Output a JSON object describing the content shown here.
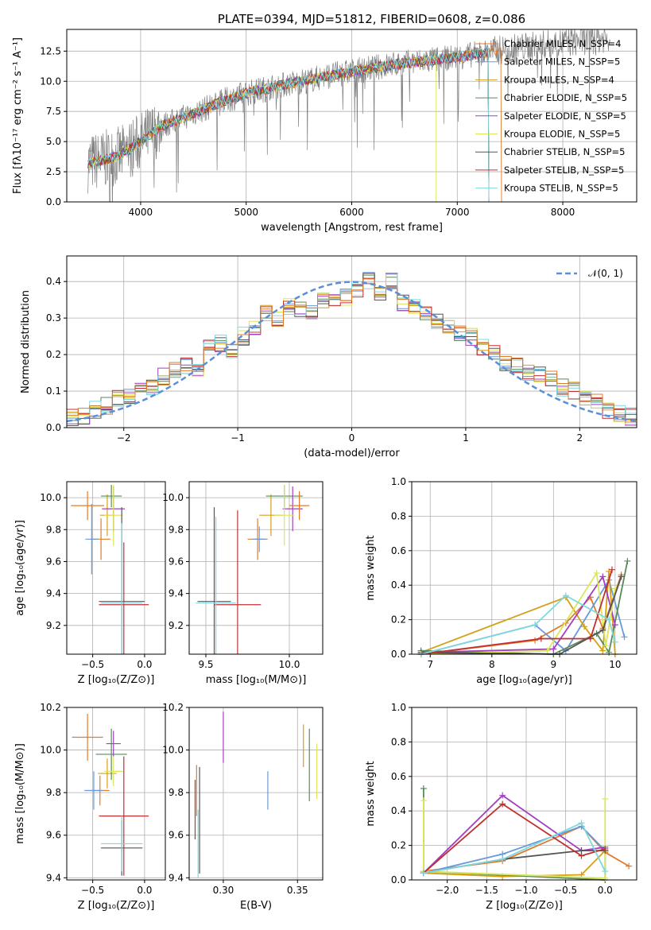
{
  "colors": {
    "series": [
      "#ff7f0e",
      "#1f77b4",
      "#d62728",
      "#bcbd22",
      "#17becf",
      "#2ca02c",
      "#9467bd",
      "#e377c2",
      "#7f7f7f"
    ],
    "model_colors": [
      "#e07b2c",
      "#6699dd",
      "#d4a017",
      "#5a8a5a",
      "#a040c0",
      "#dce65a",
      "#555555",
      "#c03030",
      "#7fd8e0"
    ],
    "data_gray": "#808080",
    "gauss": "#5b8fd6"
  },
  "chart_data": [
    {
      "type": "line",
      "title": "PLATE=0394, MJD=51812, FIBERID=0608, z=0.086",
      "xlabel": "wavelength [Angstrom, rest frame]",
      "ylabel": "Flux [fλ10⁻¹⁷ erg cm⁻² s⁻¹ A⁻¹]",
      "xlim": [
        3300,
        8700
      ],
      "ylim": [
        0,
        14.3
      ],
      "xticks": [
        "4000",
        "5000",
        "6000",
        "7000",
        "8000"
      ],
      "yticks": [
        "0.0",
        "2.5",
        "5.0",
        "7.5",
        "10.0",
        "12.5"
      ],
      "legend_position": "right",
      "series": [
        {
          "name": "Chabrier MILES, N_SSP=4"
        },
        {
          "name": "Salpeter MILES, N_SSP=5"
        },
        {
          "name": "Kroupa MILES, N_SSP=4"
        },
        {
          "name": "Chabrier ELODIE, N_SSP=5"
        },
        {
          "name": "Salpeter ELODIE, N_SSP=5"
        },
        {
          "name": "Kroupa ELODIE, N_SSP=5"
        },
        {
          "name": "Chabrier STELIB, N_SSP=5"
        },
        {
          "name": "Salpeter STELIB, N_SSP=5"
        },
        {
          "name": "Kroupa STELIB, N_SSP=5"
        }
      ],
      "spectrum_shape": {
        "x": [
          3500,
          3600,
          3800,
          4000,
          4200,
          4400,
          4600,
          4800,
          5000,
          5200,
          5400,
          5600,
          5800,
          6000,
          6200,
          6400,
          6600,
          6800,
          7000,
          7200,
          7400,
          7600,
          7800,
          8000,
          8200,
          8400
        ],
        "y": [
          3.2,
          3.4,
          3.8,
          5.0,
          6.3,
          7.0,
          7.7,
          8.4,
          9.0,
          9.4,
          9.8,
          10.1,
          10.5,
          10.8,
          11.1,
          11.4,
          11.6,
          11.8,
          12.0,
          12.3,
          12.6,
          12.8,
          13.0,
          13.2,
          13.4,
          13.6
        ]
      }
    },
    {
      "type": "line",
      "xlabel": "(data-model)/error",
      "ylabel": "Normed distribution",
      "xlim": [
        -2.5,
        2.5
      ],
      "ylim": [
        0,
        0.47
      ],
      "xticks": [
        "−2",
        "−1",
        "0",
        "1",
        "2"
      ],
      "yticks": [
        "0.0",
        "0.1",
        "0.2",
        "0.3",
        "0.4"
      ],
      "legend": "𝒩(0, 1)",
      "legend_position": "top-right",
      "histogram_centers": [
        -2.45,
        -2.35,
        -2.25,
        -2.15,
        -2.05,
        -1.95,
        -1.85,
        -1.75,
        -1.65,
        -1.55,
        -1.45,
        -1.35,
        -1.25,
        -1.15,
        -1.05,
        -0.95,
        -0.85,
        -0.75,
        -0.65,
        -0.55,
        -0.45,
        -0.35,
        -0.25,
        -0.15,
        -0.05,
        0.05,
        0.15,
        0.25,
        0.35,
        0.45,
        0.55,
        0.65,
        0.75,
        0.85,
        0.95,
        1.05,
        1.15,
        1.25,
        1.35,
        1.45,
        1.55,
        1.65,
        1.75,
        1.85,
        1.95,
        2.05,
        2.15,
        2.25,
        2.35,
        2.45
      ],
      "histogram_values": [
        0.03,
        0.03,
        0.05,
        0.06,
        0.08,
        0.09,
        0.11,
        0.11,
        0.14,
        0.16,
        0.17,
        0.16,
        0.22,
        0.23,
        0.21,
        0.25,
        0.27,
        0.31,
        0.3,
        0.33,
        0.32,
        0.32,
        0.35,
        0.34,
        0.36,
        0.38,
        0.4,
        0.37,
        0.4,
        0.34,
        0.33,
        0.32,
        0.29,
        0.27,
        0.26,
        0.25,
        0.22,
        0.2,
        0.18,
        0.17,
        0.15,
        0.15,
        0.13,
        0.11,
        0.1,
        0.08,
        0.07,
        0.05,
        0.04,
        0.03
      ]
    },
    {
      "type": "scatter",
      "xlabel": "Z [log₁₀(Z/Z⊙)]",
      "ylabel": "age  [log₁₀(age/yr)]",
      "xlim": [
        -0.75,
        0.2
      ],
      "ylim": [
        9.02,
        10.1
      ],
      "xticks": [
        "−0.5",
        "0.0"
      ],
      "yticks": [
        "9.2",
        "9.4",
        "9.6",
        "9.8",
        "10.0"
      ],
      "points": [
        {
          "x": -0.42,
          "y": 9.74,
          "xerr": 0.09,
          "yerr": 0.13
        },
        {
          "x": -0.51,
          "y": 9.74,
          "xerr": 0.06,
          "yerr": 0.22
        },
        {
          "x": -0.36,
          "y": 9.89,
          "xerr": 0.07,
          "yerr": 0.13
        },
        {
          "x": -0.32,
          "y": 10.01,
          "xerr": 0.1,
          "yerr": 0.07
        },
        {
          "x": -0.3,
          "y": 9.93,
          "xerr": 0.11,
          "yerr": 0.14
        },
        {
          "x": -0.3,
          "y": 9.89,
          "xerr": 0.09,
          "yerr": 0.19
        },
        {
          "x": -0.22,
          "y": 9.35,
          "xerr": 0.22,
          "yerr": 0.59
        },
        {
          "x": -0.2,
          "y": 9.33,
          "xerr": 0.24,
          "yerr": 0.39
        },
        {
          "x": -0.22,
          "y": 9.34,
          "xerr": 0.2,
          "yerr": 0.5
        },
        {
          "x": -0.55,
          "y": 9.95,
          "xerr": 0.16,
          "yerr": 0.09
        }
      ]
    },
    {
      "type": "scatter",
      "xlabel": "mass [log₁₀(M/M⊙)]",
      "ylabel": "",
      "xlim": [
        9.4,
        10.2
      ],
      "ylim": [
        9.02,
        10.1
      ],
      "xticks": [
        "9.5",
        "10.0"
      ],
      "yticks": [
        "9.2",
        "9.4",
        "9.6",
        "9.8",
        "10.0"
      ],
      "points": [
        {
          "x": 9.81,
          "y": 9.74,
          "xerr": 0.06,
          "yerr": 0.13
        },
        {
          "x": 9.82,
          "y": 9.74,
          "xerr": 0.04,
          "yerr": 0.08
        },
        {
          "x": 9.89,
          "y": 9.89,
          "xerr": 0.07,
          "yerr": 0.13
        },
        {
          "x": 9.97,
          "y": 10.01,
          "xerr": 0.11,
          "yerr": 0.07
        },
        {
          "x": 10.02,
          "y": 9.93,
          "xerr": 0.06,
          "yerr": 0.14
        },
        {
          "x": 9.97,
          "y": 9.89,
          "xerr": 0.06,
          "yerr": 0.19
        },
        {
          "x": 9.55,
          "y": 9.35,
          "xerr": 0.1,
          "yerr": 0.59
        },
        {
          "x": 9.69,
          "y": 9.33,
          "xerr": 0.14,
          "yerr": 0.59
        },
        {
          "x": 9.56,
          "y": 9.34,
          "xerr": 0.12,
          "yerr": 0.54
        },
        {
          "x": 10.06,
          "y": 9.95,
          "xerr": 0.06,
          "yerr": 0.09
        }
      ]
    },
    {
      "type": "line",
      "xlabel": "age  [log₁₀(age/yr)]",
      "ylabel": "mass weight",
      "xlim": [
        6.7,
        10.35
      ],
      "ylim": [
        0,
        1
      ],
      "xticks": [
        "7",
        "8",
        "9",
        "10"
      ],
      "yticks": [
        "0.0",
        "0.2",
        "0.4",
        "0.6",
        "0.8",
        "1.0"
      ],
      "series": [
        {
          "x": [
            6.85,
            8.7,
            9.2,
            9.6,
            9.8,
            10.1
          ],
          "y": [
            0.0,
            0.08,
            0.18,
            0.33,
            0.15,
            0.46
          ]
        },
        {
          "x": [
            6.85,
            8.7,
            9.2,
            9.9,
            10.15
          ],
          "y": [
            0.0,
            0.17,
            0.02,
            0.43,
            0.1
          ]
        },
        {
          "x": [
            6.85,
            9.2,
            9.5,
            9.8,
            9.9,
            10.0
          ],
          "y": [
            0.01,
            0.33,
            0.16,
            0.02,
            0.48,
            0.0
          ]
        },
        {
          "x": [
            6.85,
            9.0,
            9.7,
            9.9,
            10.2
          ],
          "y": [
            0.02,
            0.0,
            0.12,
            0.01,
            0.54
          ]
        },
        {
          "x": [
            6.85,
            9.0,
            9.8,
            10.0
          ],
          "y": [
            0.01,
            0.03,
            0.45,
            0.17
          ]
        },
        {
          "x": [
            6.85,
            8.9,
            9.7,
            9.85,
            10.0
          ],
          "y": [
            0.0,
            0.02,
            0.47,
            0.05,
            0.38
          ]
        },
        {
          "x": [
            6.85,
            9.1,
            9.8,
            10.1
          ],
          "y": [
            0.01,
            0.0,
            0.14,
            0.45
          ]
        },
        {
          "x": [
            6.85,
            8.8,
            9.6,
            9.95
          ],
          "y": [
            0.0,
            0.09,
            0.09,
            0.49
          ]
        },
        {
          "x": [
            6.85,
            8.7,
            9.2,
            9.9,
            10.0
          ],
          "y": [
            0.0,
            0.17,
            0.34,
            0.2,
            0.07
          ]
        }
      ]
    },
    {
      "type": "scatter",
      "xlabel": "Z [log₁₀(Z/Z⊙)]",
      "ylabel": "mass [log₁₀(M/M⊙)]",
      "xlim": [
        -0.75,
        0.2
      ],
      "ylim": [
        9.39,
        10.2
      ],
      "xticks": [
        "−0.5",
        "0.0"
      ],
      "yticks": [
        "9.4",
        "9.6",
        "9.8",
        "10.0",
        "10.2"
      ],
      "points": [
        {
          "x": -0.43,
          "y": 9.81,
          "xerr": 0.09,
          "yerr": 0.07
        },
        {
          "x": -0.49,
          "y": 9.81,
          "xerr": 0.09,
          "yerr": 0.09
        },
        {
          "x": -0.36,
          "y": 9.89,
          "xerr": 0.09,
          "yerr": 0.07
        },
        {
          "x": -0.32,
          "y": 9.98,
          "xerr": 0.15,
          "yerr": 0.12
        },
        {
          "x": -0.3,
          "y": 10.03,
          "xerr": 0.07,
          "yerr": 0.06
        },
        {
          "x": -0.3,
          "y": 9.9,
          "xerr": 0.09,
          "yerr": 0.07
        },
        {
          "x": -0.22,
          "y": 9.54,
          "xerr": 0.2,
          "yerr": 0.13
        },
        {
          "x": -0.2,
          "y": 9.69,
          "xerr": 0.24,
          "yerr": 0.28
        },
        {
          "x": -0.22,
          "y": 9.56,
          "xerr": 0.2,
          "yerr": 0.13
        },
        {
          "x": -0.55,
          "y": 10.06,
          "xerr": 0.15,
          "yerr": 0.11
        }
      ]
    },
    {
      "type": "scatter",
      "xlabel": "E(B-V)",
      "ylabel": "",
      "xlim": [
        0.277,
        0.367
      ],
      "ylim": [
        9.39,
        10.2
      ],
      "xticks": [
        "0.30",
        "0.35"
      ],
      "yticks": [
        "9.4",
        "9.6",
        "9.8",
        "10.0",
        "10.2"
      ],
      "points": [
        {
          "x": 0.282,
          "y": 9.81,
          "yerr": 0.12
        },
        {
          "x": 0.33,
          "y": 9.81,
          "yerr": 0.09
        },
        {
          "x": 0.354,
          "y": 10.02,
          "yerr": 0.1
        },
        {
          "x": 0.358,
          "y": 9.93,
          "yerr": 0.17
        },
        {
          "x": 0.3,
          "y": 10.06,
          "yerr": 0.12
        },
        {
          "x": 0.363,
          "y": 9.9,
          "yerr": 0.13
        },
        {
          "x": 0.284,
          "y": 9.67,
          "yerr": 0.25
        },
        {
          "x": 0.281,
          "y": 9.72,
          "yerr": 0.14
        },
        {
          "x": 0.283,
          "y": 9.56,
          "yerr": 0.16
        }
      ]
    },
    {
      "type": "line",
      "xlabel": "Z [log₁₀(Z/Z⊙)]",
      "ylabel": "mass weight",
      "xlim": [
        -2.45,
        0.4
      ],
      "ylim": [
        0,
        1
      ],
      "xticks": [
        "−2.0",
        "−1.5",
        "−1.0",
        "−0.5",
        "0.0"
      ],
      "yticks": [
        "0.0",
        "0.2",
        "0.4",
        "0.6",
        "0.8",
        "1.0"
      ],
      "series": [
        {
          "x": [
            -2.3,
            -1.3,
            -0.3,
            0.0,
            0.3
          ],
          "y": [
            0.05,
            0.11,
            0.31,
            0.16,
            0.08
          ]
        },
        {
          "x": [
            -2.3,
            -1.3,
            -0.3,
            0.0
          ],
          "y": [
            0.04,
            0.15,
            0.31,
            0.17
          ]
        },
        {
          "x": [
            -2.3,
            -1.3,
            -0.3,
            0.0
          ],
          "y": [
            0.04,
            0.02,
            0.03,
            0.17
          ]
        },
        {
          "x": [
            -2.3,
            -2.3,
            0.0,
            0.0
          ],
          "y": [
            0.53,
            0.05,
            0.0,
            0.17
          ]
        },
        {
          "x": [
            -2.3,
            -1.3,
            -0.3,
            0.0
          ],
          "y": [
            0.04,
            0.49,
            0.17,
            0.19
          ]
        },
        {
          "x": [
            -2.3,
            -2.3,
            0.0,
            0.0
          ],
          "y": [
            0.46,
            0.05,
            0.01,
            0.47
          ]
        },
        {
          "x": [
            -2.3,
            -1.3,
            -0.3,
            0.0
          ],
          "y": [
            0.04,
            0.12,
            0.17,
            0.17
          ]
        },
        {
          "x": [
            -2.3,
            -1.3,
            -0.3,
            0.0
          ],
          "y": [
            0.04,
            0.44,
            0.14,
            0.18
          ]
        },
        {
          "x": [
            -2.3,
            -1.3,
            -0.3,
            0.0
          ],
          "y": [
            0.04,
            0.12,
            0.33,
            0.05
          ]
        }
      ]
    }
  ]
}
